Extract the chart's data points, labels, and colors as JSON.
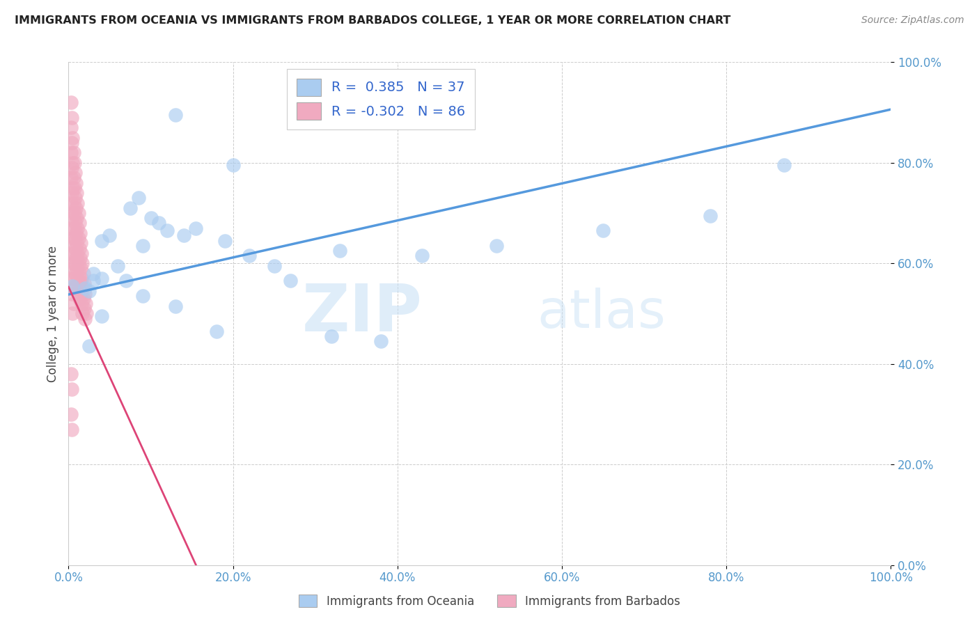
{
  "title": "IMMIGRANTS FROM OCEANIA VS IMMIGRANTS FROM BARBADOS COLLEGE, 1 YEAR OR MORE CORRELATION CHART",
  "source": "Source: ZipAtlas.com",
  "ylabel": "College, 1 year or more",
  "xlim": [
    0.0,
    1.0
  ],
  "ylim": [
    0.0,
    1.0
  ],
  "legend_label1": "Immigrants from Oceania",
  "legend_label2": "Immigrants from Barbados",
  "r1": 0.385,
  "n1": 37,
  "r2": -0.302,
  "n2": 86,
  "color1": "#aaccf0",
  "color2": "#f0aac0",
  "line_color1": "#5599dd",
  "line_color2": "#dd4477",
  "watermark_zip": "ZIP",
  "watermark_atlas": "atlas",
  "oceania_x": [
    0.005,
    0.13,
    0.2,
    0.05,
    0.04,
    0.03,
    0.02,
    0.03,
    0.025,
    0.04,
    0.1,
    0.12,
    0.09,
    0.11,
    0.22,
    0.07,
    0.33,
    0.085,
    0.075,
    0.06,
    0.19,
    0.155,
    0.14,
    0.27,
    0.25,
    0.43,
    0.52,
    0.65,
    0.78,
    0.32,
    0.18,
    0.13,
    0.09,
    0.04,
    0.025,
    0.87,
    0.38
  ],
  "oceania_y": [
    0.555,
    0.895,
    0.795,
    0.655,
    0.645,
    0.565,
    0.55,
    0.58,
    0.545,
    0.57,
    0.69,
    0.665,
    0.635,
    0.68,
    0.615,
    0.565,
    0.625,
    0.73,
    0.71,
    0.595,
    0.645,
    0.67,
    0.655,
    0.565,
    0.595,
    0.615,
    0.635,
    0.665,
    0.695,
    0.455,
    0.465,
    0.515,
    0.535,
    0.495,
    0.435,
    0.795,
    0.445
  ],
  "barbados_x": [
    0.003,
    0.004,
    0.005,
    0.006,
    0.007,
    0.008,
    0.009,
    0.01,
    0.011,
    0.012,
    0.013,
    0.014,
    0.015,
    0.016,
    0.017,
    0.018,
    0.019,
    0.02,
    0.021,
    0.022,
    0.003,
    0.004,
    0.005,
    0.006,
    0.007,
    0.008,
    0.009,
    0.01,
    0.011,
    0.012,
    0.013,
    0.014,
    0.015,
    0.016,
    0.017,
    0.018,
    0.019,
    0.02,
    0.003,
    0.004,
    0.005,
    0.006,
    0.007,
    0.008,
    0.009,
    0.01,
    0.011,
    0.012,
    0.013,
    0.014,
    0.015,
    0.016,
    0.017,
    0.003,
    0.004,
    0.005,
    0.006,
    0.007,
    0.008,
    0.009,
    0.01,
    0.011,
    0.012,
    0.013,
    0.003,
    0.004,
    0.005,
    0.006,
    0.007,
    0.008,
    0.003,
    0.004,
    0.005,
    0.006,
    0.007,
    0.003,
    0.004,
    0.005,
    0.006,
    0.003,
    0.004,
    0.005,
    0.003,
    0.004,
    0.003,
    0.004
  ],
  "barbados_y": [
    0.92,
    0.89,
    0.85,
    0.82,
    0.8,
    0.78,
    0.76,
    0.74,
    0.72,
    0.7,
    0.68,
    0.66,
    0.64,
    0.62,
    0.6,
    0.58,
    0.56,
    0.54,
    0.52,
    0.5,
    0.87,
    0.84,
    0.8,
    0.77,
    0.75,
    0.73,
    0.71,
    0.69,
    0.67,
    0.65,
    0.63,
    0.61,
    0.59,
    0.57,
    0.55,
    0.53,
    0.51,
    0.49,
    0.82,
    0.79,
    0.75,
    0.72,
    0.7,
    0.68,
    0.66,
    0.64,
    0.62,
    0.6,
    0.58,
    0.56,
    0.54,
    0.52,
    0.5,
    0.77,
    0.74,
    0.7,
    0.67,
    0.65,
    0.63,
    0.61,
    0.59,
    0.57,
    0.55,
    0.53,
    0.72,
    0.69,
    0.65,
    0.62,
    0.6,
    0.58,
    0.67,
    0.64,
    0.6,
    0.57,
    0.55,
    0.62,
    0.59,
    0.55,
    0.52,
    0.57,
    0.54,
    0.5,
    0.38,
    0.35,
    0.3,
    0.27
  ],
  "line1_x0": 0.0,
  "line1_y0": 0.538,
  "line1_x1": 1.0,
  "line1_y1": 0.906,
  "line2_x0": 0.0,
  "line2_y0": 0.553,
  "line2_x1": 0.155,
  "line2_y1": 0.0
}
